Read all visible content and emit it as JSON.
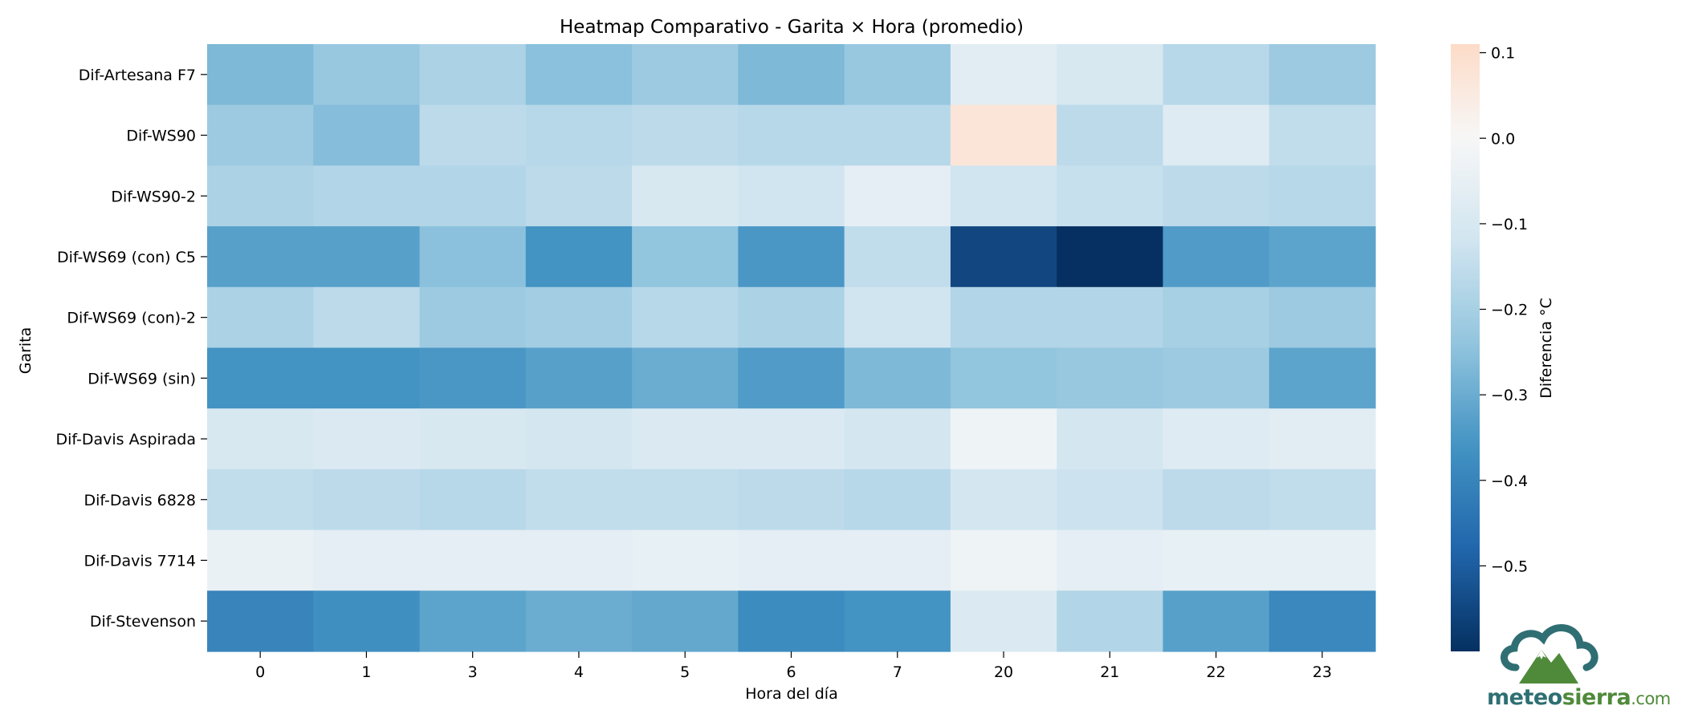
{
  "chart_data": {
    "type": "heatmap",
    "title": "Heatmap Comparativo - Garita × Hora (promedio)",
    "xlabel": "Hora del día",
    "ylabel": "Garita",
    "x_categories": [
      "0",
      "1",
      "3",
      "4",
      "5",
      "6",
      "7",
      "20",
      "21",
      "22",
      "23"
    ],
    "y_categories": [
      "Dif-Artesana F7",
      "Dif-WS90",
      "Dif-WS90-2",
      "Dif-WS69 (con) C5",
      "Dif-WS69 (con)-2",
      "Dif-WS69 (sin)",
      "Dif-Davis Aspirada",
      "Dif-Davis 6828",
      "Dif-Davis 7714",
      "Dif-Stevenson"
    ],
    "values": [
      [
        -0.27,
        -0.23,
        -0.19,
        -0.25,
        -0.22,
        -0.27,
        -0.23,
        -0.07,
        -0.1,
        -0.17,
        -0.22
      ],
      [
        -0.22,
        -0.26,
        -0.16,
        -0.17,
        -0.16,
        -0.17,
        -0.17,
        0.07,
        -0.16,
        -0.08,
        -0.15
      ],
      [
        -0.19,
        -0.18,
        -0.18,
        -0.16,
        -0.1,
        -0.12,
        -0.06,
        -0.12,
        -0.14,
        -0.16,
        -0.17
      ],
      [
        -0.33,
        -0.33,
        -0.25,
        -0.36,
        -0.24,
        -0.35,
        -0.15,
        -0.55,
        -0.6,
        -0.34,
        -0.32
      ],
      [
        -0.19,
        -0.16,
        -0.22,
        -0.21,
        -0.17,
        -0.19,
        -0.12,
        -0.18,
        -0.18,
        -0.2,
        -0.22
      ],
      [
        -0.36,
        -0.36,
        -0.35,
        -0.33,
        -0.3,
        -0.34,
        -0.27,
        -0.24,
        -0.23,
        -0.22,
        -0.32
      ],
      [
        -0.1,
        -0.09,
        -0.1,
        -0.11,
        -0.09,
        -0.09,
        -0.11,
        -0.03,
        -0.11,
        -0.08,
        -0.07
      ],
      [
        -0.15,
        -0.16,
        -0.17,
        -0.15,
        -0.15,
        -0.16,
        -0.17,
        -0.11,
        -0.13,
        -0.16,
        -0.15
      ],
      [
        -0.04,
        -0.06,
        -0.06,
        -0.06,
        -0.05,
        -0.06,
        -0.06,
        -0.03,
        -0.06,
        -0.05,
        -0.05
      ],
      [
        -0.4,
        -0.37,
        -0.32,
        -0.3,
        -0.31,
        -0.38,
        -0.36,
        -0.09,
        -0.18,
        -0.33,
        -0.39
      ]
    ],
    "colorbar": {
      "label": "Diferencia °C",
      "vmin": -0.6,
      "vmax": 0.11,
      "ticks": [
        "0.1",
        "0.0",
        "−0.1",
        "−0.2",
        "−0.3",
        "−0.4",
        "−0.5"
      ],
      "tick_values": [
        0.1,
        0.0,
        -0.1,
        -0.2,
        -0.3,
        -0.4,
        -0.5
      ],
      "colormap": "RdBu_r"
    },
    "grid": false,
    "legend": "colorbar-right"
  },
  "logo": {
    "brand": "meteosierra",
    "brand_part1": "meteo",
    "brand_part2": "sierra",
    "suffix": ".com",
    "colors": {
      "teal": "#2f6f73",
      "green": "#4f8a3a"
    }
  }
}
